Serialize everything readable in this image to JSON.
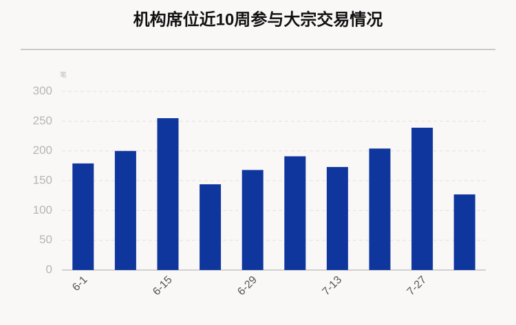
{
  "chart_data": {
    "type": "bar",
    "title": "机构席位近10周参与大宗交易情况",
    "y_label": "笔",
    "categories": [
      "6-1",
      null,
      "6-15",
      null,
      "6-29",
      null,
      "7-13",
      null,
      "7-27",
      null
    ],
    "values": [
      179,
      200,
      255,
      144,
      168,
      191,
      173,
      204,
      239,
      127
    ],
    "color": "#0e369d",
    "ylim": [
      0,
      300
    ],
    "yticks": [
      0,
      50,
      100,
      150,
      200,
      250,
      300
    ],
    "grid": true
  }
}
